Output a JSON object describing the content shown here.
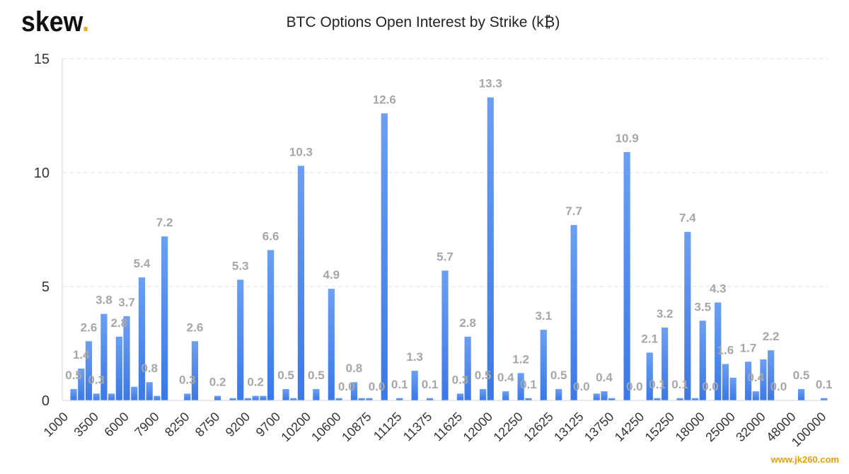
{
  "logo": {
    "text": "skew",
    "dot": "."
  },
  "watermark": "www.jk260.com",
  "colors": {
    "bar_top": "#6b9ff3",
    "bar_bottom": "#3b78e7",
    "logo_dot": "#f2a922",
    "data_label": "#a6a6a6",
    "watermark": "#e6a100"
  },
  "chart_data": {
    "type": "bar",
    "title": "BTC Options Open Interest by Strike (k₿)",
    "ylim": [
      0,
      15
    ],
    "y_ticks": [
      0,
      5,
      10,
      15
    ],
    "grid": true,
    "legend": "none",
    "x_tick_labels": [
      "1000",
      "3500",
      "6000",
      "7900",
      "8250",
      "8750",
      "9200",
      "9700",
      "10200",
      "10600",
      "10875",
      "11125",
      "11375",
      "11625",
      "12000",
      "12250",
      "12625",
      "13125",
      "13750",
      "14250",
      "15250",
      "18000",
      "25000",
      "32000",
      "48000",
      "100000"
    ],
    "values": [
      0,
      0.5,
      1.4,
      2.6,
      0.3,
      3.8,
      0.3,
      2.8,
      3.7,
      0.6,
      5.4,
      0.8,
      0.2,
      7.2,
      0,
      0,
      0.3,
      2.6,
      0,
      0,
      0.2,
      0,
      0.1,
      5.3,
      0.1,
      0.2,
      0.2,
      6.6,
      0,
      0.5,
      0.1,
      10.3,
      0,
      0.5,
      0,
      4.9,
      0.1,
      0.0,
      0.8,
      0.1,
      0.1,
      0.0,
      12.6,
      0,
      0.1,
      0,
      1.3,
      0,
      0.1,
      0,
      5.7,
      0,
      0.3,
      2.8,
      0,
      0.5,
      13.3,
      0,
      0.4,
      0,
      1.2,
      0.1,
      0,
      3.1,
      0,
      0.5,
      0,
      7.7,
      0.0,
      0,
      0.3,
      0.4,
      0.1,
      0,
      10.9,
      0.0,
      0,
      2.1,
      0.1,
      3.2,
      0,
      0.1,
      7.4,
      0.1,
      3.5,
      0.0,
      4.3,
      1.6,
      1.0,
      0,
      1.7,
      0.4,
      1.8,
      2.2,
      0.0,
      0,
      0,
      0.5,
      0,
      0,
      0.1
    ],
    "data_labels": [
      null,
      "0.5",
      "1.4",
      "2.6",
      "0.3",
      "3.8",
      null,
      "2.8",
      "3.7",
      null,
      "5.4",
      "0.8",
      null,
      "7.2",
      null,
      null,
      "0.3",
      "2.6",
      null,
      null,
      "0.2",
      null,
      null,
      "5.3",
      null,
      "0.2",
      null,
      "6.6",
      null,
      "0.5",
      null,
      "10.3",
      null,
      "0.5",
      null,
      "4.9",
      null,
      "0.0",
      "0.8",
      null,
      null,
      "0.0",
      "12.6",
      null,
      "0.1",
      null,
      "1.3",
      null,
      "0.1",
      null,
      "5.7",
      null,
      "0.3",
      "2.8",
      null,
      "0.5",
      "13.3",
      null,
      "0.4",
      null,
      "1.2",
      "0.1",
      null,
      "3.1",
      null,
      "0.5",
      null,
      "7.7",
      "0.0",
      null,
      null,
      "0.4",
      null,
      null,
      "10.9",
      "0.0",
      null,
      "2.1",
      "0.1",
      "3.2",
      null,
      "0.1",
      "7.4",
      null,
      "3.5",
      "0.0",
      "4.3",
      "1.6",
      null,
      null,
      "1.7",
      "0.4",
      null,
      "2.2",
      "0.0",
      null,
      null,
      "0.5",
      null,
      null,
      "0.1"
    ]
  }
}
